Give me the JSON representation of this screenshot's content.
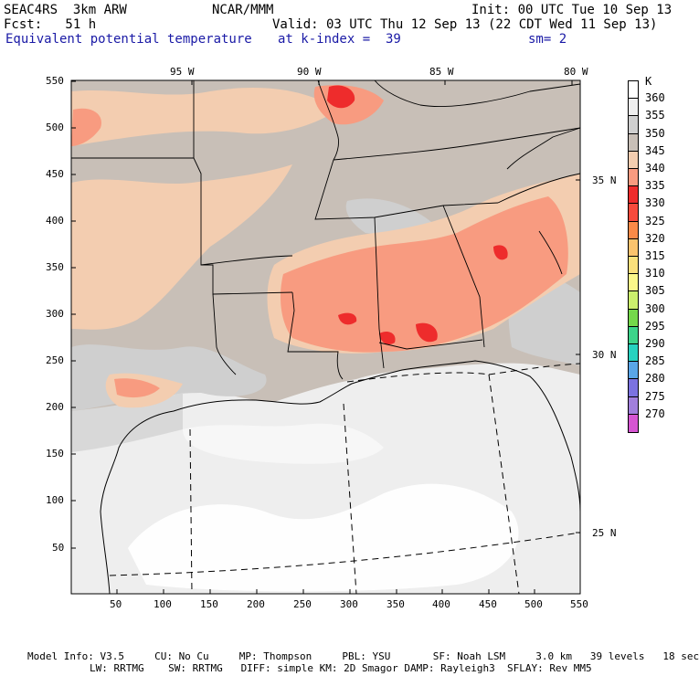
{
  "header": {
    "model_name": "SEAC4RS  3km ARW",
    "institution": "NCAR/MMM",
    "init_time": "Init: 00 UTC Tue 10 Sep 13",
    "forecast_hour": "Fcst:   51 h",
    "valid_time": "Valid: 03 UTC Thu 12 Sep 13 (22 CDT Wed 11 Sep 13)",
    "field_name": "Equivalent potential temperature",
    "level": "at k-index =  39",
    "smoothing": "sm= 2"
  },
  "map": {
    "x_ticks": [
      "50",
      "100",
      "150",
      "200",
      "250",
      "300",
      "350",
      "400",
      "450",
      "500",
      "550"
    ],
    "y_ticks": [
      "50",
      "100",
      "150",
      "200",
      "250",
      "300",
      "350",
      "400",
      "450",
      "500",
      "550"
    ],
    "lon_labels": [
      "95 W",
      "90 W",
      "85 W",
      "80 W"
    ],
    "lat_labels": [
      "35 N",
      "30 N",
      "25 N"
    ]
  },
  "colorbar": {
    "unit": "K",
    "levels": [
      {
        "value": "360",
        "color": "#ffffff"
      },
      {
        "value": "355",
        "color": "#eeeeee"
      },
      {
        "value": "350",
        "color": "#cfcfcf"
      },
      {
        "value": "345",
        "color": "#c8bfb7"
      },
      {
        "value": "340",
        "color": "#f3cdb0"
      },
      {
        "value": "335",
        "color": "#f89b80"
      },
      {
        "value": "330",
        "color": "#ee2c2c"
      },
      {
        "value": "325",
        "color": "#f74a3c"
      },
      {
        "value": "320",
        "color": "#fa8a48"
      },
      {
        "value": "315",
        "color": "#fbc36e"
      },
      {
        "value": "310",
        "color": "#fae07c"
      },
      {
        "value": "305",
        "color": "#fbf78a"
      },
      {
        "value": "300",
        "color": "#cbef6d"
      },
      {
        "value": "295",
        "color": "#74d84b"
      },
      {
        "value": "290",
        "color": "#3dd48a"
      },
      {
        "value": "285",
        "color": "#27d2c0"
      },
      {
        "value": "280",
        "color": "#5aa6e8"
      },
      {
        "value": "275",
        "color": "#7b72e0"
      },
      {
        "value": "270",
        "color": "#a17fdc"
      },
      {
        "value": "",
        "color": "#d655d2"
      }
    ]
  },
  "footer": {
    "line1": "Model Info: V3.5     CU: No Cu     MP: Thompson     PBL: YSU       SF: Noah LSM     3.0 km   39 levels   18 sec",
    "line2": "LW: RRTMG    SW: RRTMG   DIFF: simple KM: 2D Smagor DAMP: Rayleigh3  SFLAY: Rev MM5"
  }
}
